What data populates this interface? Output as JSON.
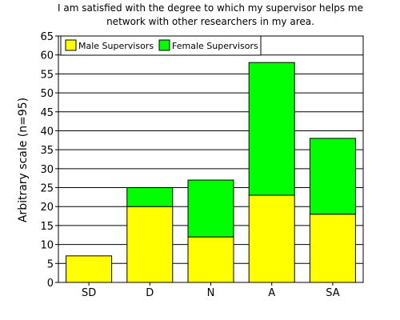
{
  "chart_data": {
    "type": "bar",
    "stacked": true,
    "title_lines": [
      "I am satisfied with the degree to which my supervisor helps me",
      "network with other researchers in my area."
    ],
    "xlabel": "",
    "ylabel": "Arbitrary scale (n=95)",
    "categories": [
      "SD",
      "D",
      "N",
      "A",
      "SA"
    ],
    "ylim": [
      0,
      65
    ],
    "yticks": [
      0,
      5,
      10,
      15,
      20,
      25,
      30,
      35,
      40,
      45,
      50,
      55,
      60,
      65
    ],
    "grid": true,
    "legend_position": "top-left",
    "series": [
      {
        "name": "Male Supervisors",
        "color": "#ffff00",
        "values": [
          7,
          20,
          12,
          23,
          18
        ]
      },
      {
        "name": "Female Supervisors",
        "color": "#00ff00",
        "values": [
          0,
          5,
          15,
          35,
          20
        ]
      }
    ]
  }
}
